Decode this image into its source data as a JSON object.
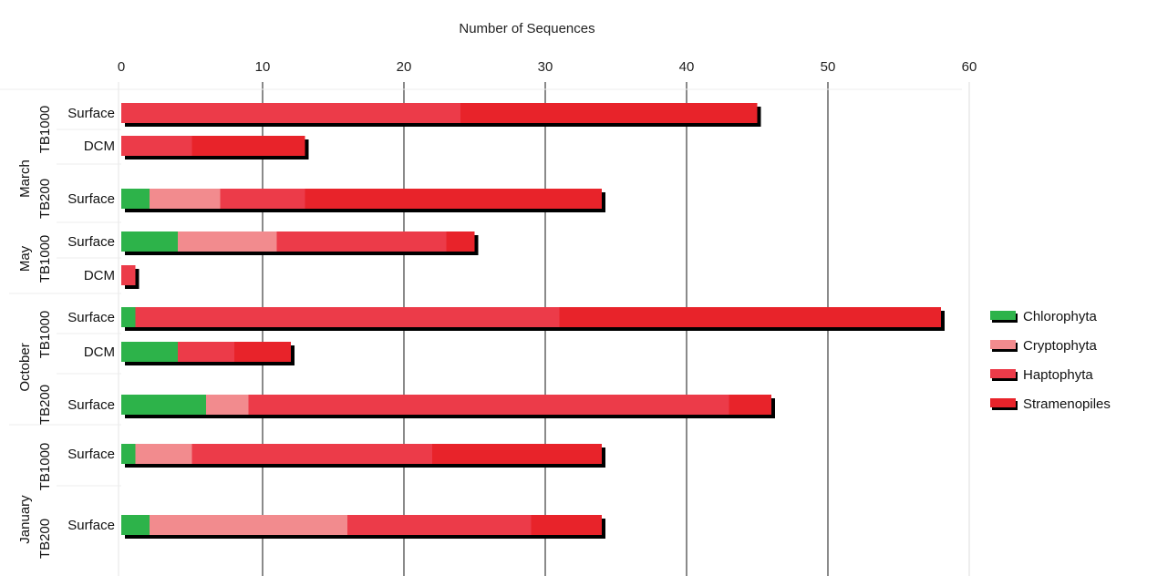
{
  "chart_data": {
    "type": "bar",
    "orientation": "horizontal",
    "stacked": true,
    "title": "",
    "xlabel": "Number of Sequences",
    "xlim": [
      0,
      60
    ],
    "xticks": [
      "0",
      "10",
      "20",
      "30",
      "40",
      "50",
      "60"
    ],
    "x_axis_position": "top",
    "grid": true,
    "legend_position": "right",
    "series": [
      {
        "name": "Chlorophyta",
        "color": "#2db34a"
      },
      {
        "name": "Cryptophyta",
        "color": "#f28b8e"
      },
      {
        "name": "Haptophyta",
        "color": "#ec3b49"
      },
      {
        "name": "Stramenopiles",
        "color": "#e8232a"
      }
    ],
    "rows": [
      {
        "month": "March",
        "station": "TB1000",
        "depth": "Surface",
        "values": [
          0,
          0,
          24,
          21
        ]
      },
      {
        "month": "March",
        "station": "TB1000",
        "depth": "DCM",
        "values": [
          0,
          0,
          5,
          8
        ]
      },
      {
        "month": "March",
        "station": "TB200",
        "depth": "Surface",
        "values": [
          2,
          5,
          6,
          21
        ]
      },
      {
        "month": "May",
        "station": "TB1000",
        "depth": "Surface",
        "values": [
          4,
          7,
          12,
          2
        ]
      },
      {
        "month": "May",
        "station": "TB1000",
        "depth": "DCM",
        "values": [
          0,
          0,
          1,
          0
        ]
      },
      {
        "month": "October",
        "station": "TB1000",
        "depth": "Surface",
        "values": [
          1,
          0,
          30,
          27
        ]
      },
      {
        "month": "October",
        "station": "TB1000",
        "depth": "DCM",
        "values": [
          4,
          0,
          4,
          4
        ]
      },
      {
        "month": "October",
        "station": "TB200",
        "depth": "Surface",
        "values": [
          6,
          3,
          34,
          3
        ]
      },
      {
        "month": "January",
        "station": "TB1000",
        "depth": "Surface",
        "values": [
          1,
          4,
          17,
          12
        ]
      },
      {
        "month": "January",
        "station": "TB200",
        "depth": "Surface",
        "values": [
          2,
          14,
          13,
          5
        ]
      }
    ]
  }
}
